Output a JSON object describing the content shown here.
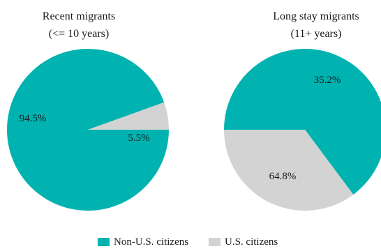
{
  "chart_data": [
    {
      "type": "pie",
      "title": "Recent migrants",
      "subtitle": "(<= 10 years)",
      "categories": [
        "Non-U.S. citizens",
        "U.S. citizens"
      ],
      "values": [
        94.5,
        5.5
      ],
      "labels": [
        "94.5%",
        "5.5%"
      ],
      "colors": [
        "#00b3b0",
        "#d3d3d3"
      ],
      "legend": "bottom"
    },
    {
      "type": "pie",
      "title": "Long stay  migrants",
      "subtitle": "(11+ years)",
      "categories": [
        "Non-U.S. citizens",
        "U.S. citizens"
      ],
      "values": [
        64.8,
        35.2
      ],
      "labels": [
        "64.8%",
        "35.2%"
      ],
      "colors": [
        "#00b3b0",
        "#d3d3d3"
      ],
      "legend": "bottom"
    }
  ],
  "legend": {
    "items": [
      {
        "label": "Non-U.S. citizens",
        "color": "#00b3b0"
      },
      {
        "label": "U.S. citizens",
        "color": "#d3d3d3"
      }
    ]
  }
}
